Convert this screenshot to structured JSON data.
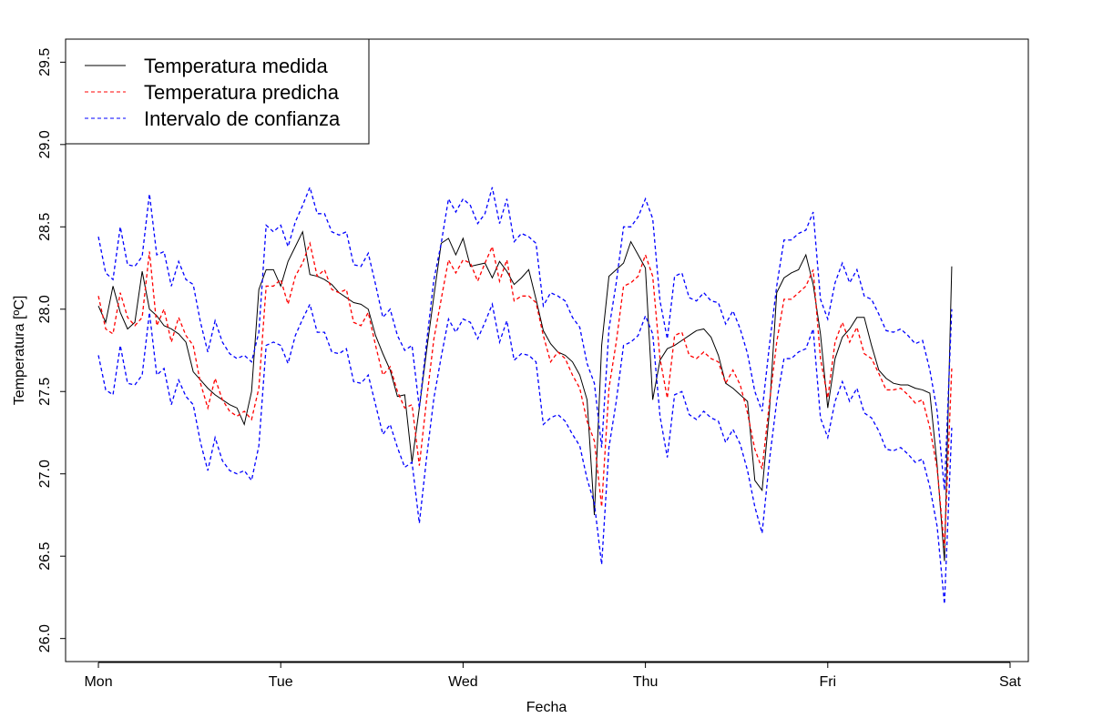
{
  "chart_data": {
    "type": "line",
    "title": "",
    "xlabel": "Fecha",
    "ylabel": "Temperatura [ºC]",
    "xlim": [
      -0.18,
      5.1
    ],
    "ylim": [
      25.86,
      29.64
    ],
    "x_ticks": [
      {
        "value": 0,
        "label": "Mon"
      },
      {
        "value": 1,
        "label": "Tue"
      },
      {
        "value": 2,
        "label": "Wed"
      },
      {
        "value": 3,
        "label": "Thu"
      },
      {
        "value": 4,
        "label": "Fri"
      },
      {
        "value": 5,
        "label": "Sat"
      }
    ],
    "y_ticks": [
      {
        "value": 26.0,
        "label": "26.0"
      },
      {
        "value": 26.5,
        "label": "26.5"
      },
      {
        "value": 27.0,
        "label": "27.0"
      },
      {
        "value": 27.5,
        "label": "27.5"
      },
      {
        "value": 28.0,
        "label": "28.0"
      },
      {
        "value": 28.5,
        "label": "28.5"
      },
      {
        "value": 29.0,
        "label": "29.0"
      },
      {
        "value": 29.5,
        "label": "29.5"
      }
    ],
    "x_step_days": 0.04,
    "grid": false,
    "legend_position": "top-left",
    "series": [
      {
        "name": "Temperatura medida",
        "color": "#000000",
        "style": "solid",
        "values": [
          28.02,
          27.92,
          28.14,
          27.98,
          27.88,
          27.92,
          28.23,
          28.0,
          27.96,
          27.9,
          27.88,
          27.85,
          27.8,
          27.62,
          27.57,
          27.52,
          27.48,
          27.45,
          27.42,
          27.4,
          27.3,
          27.5,
          28.12,
          28.24,
          28.24,
          28.14,
          28.29,
          28.38,
          28.47,
          28.21,
          28.2,
          28.18,
          28.15,
          28.1,
          28.07,
          28.04,
          28.03,
          28.0,
          27.84,
          27.73,
          27.63,
          27.47,
          27.48,
          27.07,
          27.4,
          27.75,
          28.08,
          28.4,
          28.43,
          28.33,
          28.43,
          28.26,
          28.27,
          28.28,
          28.19,
          28.29,
          28.23,
          28.15,
          28.19,
          28.24,
          28.06,
          27.87,
          27.79,
          27.74,
          27.72,
          27.68,
          27.6,
          27.45,
          26.75,
          27.78,
          28.2,
          28.24,
          28.28,
          28.41,
          28.33,
          28.25,
          27.45,
          27.69,
          27.76,
          27.78,
          27.81,
          27.84,
          27.87,
          27.88,
          27.83,
          27.72,
          27.55,
          27.52,
          27.48,
          27.44,
          26.96,
          26.9,
          27.38,
          28.1,
          28.19,
          28.22,
          28.24,
          28.33,
          28.15,
          27.85,
          27.4,
          27.7,
          27.83,
          27.88,
          27.95,
          27.95,
          27.78,
          27.63,
          27.58,
          27.55,
          27.54,
          27.54,
          27.52,
          27.51,
          27.49,
          27.05,
          26.47,
          28.26
        ]
      },
      {
        "name": "Temperatura predicha",
        "color": "#ff0000",
        "style": "dashed",
        "values": [
          28.08,
          27.88,
          27.85,
          28.1,
          27.95,
          27.9,
          27.95,
          28.35,
          27.9,
          28.0,
          27.8,
          27.95,
          27.84,
          27.78,
          27.55,
          27.4,
          27.58,
          27.45,
          27.38,
          27.35,
          27.38,
          27.33,
          27.52,
          28.14,
          28.14,
          28.18,
          28.03,
          28.2,
          28.28,
          28.4,
          28.2,
          28.24,
          28.12,
          28.1,
          28.12,
          27.92,
          27.9,
          27.98,
          27.78,
          27.6,
          27.65,
          27.5,
          27.4,
          27.42,
          27.05,
          27.45,
          27.82,
          28.06,
          28.3,
          28.22,
          28.3,
          28.28,
          28.17,
          28.28,
          28.38,
          28.17,
          28.3,
          28.05,
          28.08,
          28.08,
          28.04,
          27.84,
          27.68,
          27.74,
          27.7,
          27.6,
          27.52,
          27.32,
          27.2,
          26.8,
          27.52,
          27.8,
          28.14,
          28.16,
          28.2,
          28.33,
          28.2,
          27.7,
          27.46,
          27.84,
          27.86,
          27.72,
          27.7,
          27.74,
          27.7,
          27.68,
          27.55,
          27.63,
          27.54,
          27.37,
          27.15,
          27.03,
          27.43,
          27.8,
          28.06,
          28.06,
          28.1,
          28.14,
          28.24,
          27.7,
          27.46,
          27.8,
          27.92,
          27.8,
          27.89,
          27.73,
          27.7,
          27.61,
          27.51,
          27.51,
          27.52,
          27.48,
          27.43,
          27.45,
          27.28,
          27.03,
          26.55,
          27.64
        ]
      },
      {
        "name": "Intervalo de confianza",
        "color": "#0000ff",
        "style": "dashed",
        "bound": "upper",
        "values": [
          28.44,
          28.22,
          28.18,
          28.5,
          28.27,
          28.26,
          28.32,
          28.7,
          28.33,
          28.35,
          28.14,
          28.29,
          28.18,
          28.15,
          27.92,
          27.74,
          27.93,
          27.8,
          27.73,
          27.7,
          27.72,
          27.68,
          27.86,
          28.51,
          28.47,
          28.51,
          28.38,
          28.53,
          28.63,
          28.74,
          28.58,
          28.58,
          28.47,
          28.45,
          28.47,
          28.27,
          28.26,
          28.34,
          28.15,
          27.95,
          28.0,
          27.84,
          27.75,
          27.78,
          27.4,
          27.8,
          28.18,
          28.4,
          28.67,
          28.59,
          28.67,
          28.63,
          28.52,
          28.58,
          28.74,
          28.52,
          28.67,
          28.41,
          28.46,
          28.44,
          28.4,
          28.02,
          28.1,
          28.08,
          28.05,
          27.95,
          27.89,
          27.67,
          27.55,
          27.16,
          27.88,
          28.16,
          28.5,
          28.5,
          28.56,
          28.67,
          28.55,
          28.05,
          27.82,
          28.2,
          28.22,
          28.07,
          28.05,
          28.1,
          28.05,
          28.04,
          27.91,
          27.99,
          27.88,
          27.73,
          27.5,
          27.38,
          27.78,
          28.14,
          28.42,
          28.42,
          28.46,
          28.48,
          28.59,
          28.06,
          27.94,
          28.16,
          28.28,
          28.16,
          28.24,
          28.08,
          28.06,
          27.97,
          27.87,
          27.86,
          27.88,
          27.84,
          27.79,
          27.81,
          27.63,
          27.38,
          26.9,
          28.0
        ]
      },
      {
        "name": "Intervalo de confianza",
        "color": "#0000ff",
        "style": "dashed",
        "bound": "lower",
        "values": [
          27.72,
          27.51,
          27.48,
          27.78,
          27.55,
          27.54,
          27.6,
          27.98,
          27.6,
          27.64,
          27.42,
          27.57,
          27.47,
          27.42,
          27.19,
          27.02,
          27.22,
          27.08,
          27.02,
          27.0,
          27.02,
          26.96,
          27.17,
          27.78,
          27.8,
          27.78,
          27.67,
          27.84,
          27.94,
          28.03,
          27.86,
          27.86,
          27.74,
          27.73,
          27.76,
          27.56,
          27.55,
          27.6,
          27.42,
          27.24,
          27.3,
          27.16,
          27.04,
          27.07,
          26.7,
          27.1,
          27.46,
          27.71,
          27.94,
          27.86,
          27.94,
          27.92,
          27.82,
          27.92,
          28.03,
          27.8,
          27.93,
          27.69,
          27.73,
          27.72,
          27.68,
          27.3,
          27.34,
          27.36,
          27.32,
          27.24,
          27.17,
          26.97,
          26.82,
          26.45,
          27.16,
          27.44,
          27.78,
          27.8,
          27.84,
          27.96,
          27.85,
          27.35,
          27.1,
          27.48,
          27.5,
          27.36,
          27.33,
          27.38,
          27.34,
          27.32,
          27.19,
          27.27,
          27.18,
          27.02,
          26.8,
          26.64,
          27.08,
          27.44,
          27.7,
          27.7,
          27.74,
          27.76,
          27.88,
          27.34,
          27.22,
          27.44,
          27.56,
          27.44,
          27.52,
          27.37,
          27.34,
          27.26,
          27.15,
          27.14,
          27.16,
          27.12,
          27.07,
          27.09,
          26.92,
          26.68,
          26.21,
          27.28
        ]
      }
    ]
  }
}
